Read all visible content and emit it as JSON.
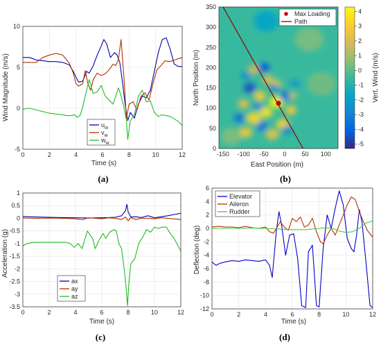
{
  "chart_data": [
    {
      "id": "a",
      "panel_label": "(a)",
      "type": "line",
      "xlabel": "Time (s)",
      "ylabel": "Wind Magnitude (m/s)",
      "xlim": [
        0,
        12
      ],
      "ylim": [
        -5,
        10
      ],
      "xticks": [
        0,
        2,
        4,
        6,
        8,
        10,
        12
      ],
      "yticks": [
        -5,
        0,
        5,
        10
      ],
      "grid": true,
      "legend_position": "bottom-right",
      "series": [
        {
          "name": "u",
          "sub": "w",
          "color": "#0000aa",
          "x": [
            0,
            0.5,
            1,
            1.5,
            2,
            2.5,
            3,
            3.5,
            3.8,
            4,
            4.2,
            4.5,
            4.8,
            5,
            5.3,
            5.6,
            5.9,
            6.1,
            6.3,
            6.6,
            6.9,
            7.1,
            7.3,
            7.5,
            7.7,
            7.9,
            8.1,
            8.4,
            8.7,
            9,
            9.3,
            9.6,
            9.9,
            10.2,
            10.5,
            10.8,
            11.1,
            11.4,
            11.7,
            12
          ],
          "y": [
            6.2,
            6.2,
            5.9,
            5.8,
            5.7,
            5.7,
            5.6,
            5.3,
            4.5,
            3.8,
            3.2,
            3.3,
            4.5,
            4.3,
            5.2,
            6.5,
            7.6,
            8.4,
            7.9,
            6.2,
            6.8,
            6.5,
            5.6,
            3.2,
            0.5,
            -1.5,
            -0.5,
            -1.2,
            0.5,
            1.5,
            1.3,
            2.2,
            4.5,
            6.8,
            8.4,
            8.6,
            7.2,
            5.4,
            5.1,
            5.1
          ]
        },
        {
          "name": "v",
          "sub": "w",
          "color": "#b03000",
          "x": [
            0,
            0.5,
            1,
            1.5,
            2,
            2.5,
            3,
            3.5,
            3.8,
            4,
            4.2,
            4.5,
            4.7,
            4.9,
            5.1,
            5.3,
            5.6,
            5.9,
            6.2,
            6.5,
            6.8,
            7,
            7.2,
            7.4,
            7.6,
            7.8,
            8,
            8.3,
            8.6,
            8.9,
            9.2,
            9.5,
            9.8,
            10.1,
            10.4,
            10.7,
            11,
            11.3,
            11.6,
            12
          ],
          "y": [
            5.6,
            5.6,
            5.6,
            6.2,
            6.5,
            6.7,
            6.5,
            5.5,
            4.3,
            3.0,
            2.7,
            3.0,
            4.6,
            3.0,
            2.2,
            3.5,
            4.3,
            4.0,
            4.2,
            4.7,
            5.4,
            5.2,
            6.0,
            8.4,
            4.0,
            -1.2,
            0.5,
            0.8,
            -0.2,
            1.5,
            1.9,
            1.0,
            3.0,
            4.7,
            5.2,
            5.8,
            5.7,
            5.8,
            6.0,
            6.2
          ]
        },
        {
          "name": "w",
          "sub": "w",
          "color": "#22bb22",
          "x": [
            0,
            0.5,
            1,
            1.5,
            2,
            2.5,
            3,
            3.3,
            3.6,
            3.9,
            4.1,
            4.3,
            4.5,
            4.7,
            5,
            5.3,
            5.6,
            5.9,
            6.2,
            6.5,
            6.8,
            7,
            7.2,
            7.4,
            7.6,
            7.8,
            7.9,
            8.1,
            8.4,
            8.7,
            9,
            9.3,
            9.6,
            9.9,
            10.2,
            10.5,
            10.8,
            11.1,
            11.4,
            11.7,
            12
          ],
          "y": [
            -0.1,
            0,
            -0.2,
            -0.4,
            -0.6,
            -0.7,
            -0.8,
            -0.9,
            -0.9,
            -0.8,
            -1.1,
            -0.9,
            0.1,
            1.5,
            3.5,
            1.8,
            2.0,
            2.8,
            1.5,
            1.0,
            0.5,
            1.5,
            2.5,
            1.5,
            0.2,
            -1.5,
            -3.8,
            -1.5,
            -0.8,
            1.5,
            2.2,
            0.8,
            0.9,
            -0.5,
            -1.0,
            -0.8,
            -0.9,
            -1.0,
            -1.3,
            -1.6,
            -2.1
          ]
        }
      ]
    },
    {
      "id": "b",
      "panel_label": "(b)",
      "type": "heatmap",
      "xlabel": "East Position (m)",
      "ylabel": "North Position (m)",
      "colorbar_label": "Vert. Wind (m/s)",
      "xlim": [
        -160,
        130
      ],
      "ylim": [
        0,
        350
      ],
      "xticks": [
        -150,
        -100,
        -50,
        0,
        50,
        100
      ],
      "yticks": [
        0,
        50,
        100,
        150,
        200,
        250,
        300,
        350
      ],
      "clim": [
        -5.3,
        4.3
      ],
      "colorbar_ticks": [
        -5,
        -4,
        -3,
        -2,
        -1,
        0,
        1,
        2,
        3,
        4
      ],
      "colormap": "parula",
      "legend_position": "top-right",
      "path": {
        "name": "Path",
        "color": "#8b0000",
        "x": [
          -150,
          45
        ],
        "y": [
          350,
          0
        ]
      },
      "max_loading": {
        "name": "Max Loading",
        "color": "#c00000",
        "x": -15,
        "y": 112
      },
      "features": [
        {
          "x": -20,
          "y": 115,
          "value": 4.0,
          "r": 18
        },
        {
          "x": -45,
          "y": 90,
          "value": 3.6,
          "r": 16
        },
        {
          "x": -75,
          "y": 75,
          "value": 3.4,
          "r": 18
        },
        {
          "x": -5,
          "y": 60,
          "value": 3.2,
          "r": 16
        },
        {
          "x": -60,
          "y": 130,
          "value": 3.0,
          "r": 15
        },
        {
          "x": 15,
          "y": 95,
          "value": 2.8,
          "r": 14
        },
        {
          "x": -95,
          "y": 40,
          "value": 2.8,
          "r": 16
        },
        {
          "x": -30,
          "y": 35,
          "value": 2.4,
          "r": 16
        },
        {
          "x": -100,
          "y": 110,
          "value": 2.2,
          "r": 14
        },
        {
          "x": -20,
          "y": 160,
          "value": 2.6,
          "r": 12
        },
        {
          "x": -40,
          "y": 170,
          "value": 2.0,
          "r": 14
        },
        {
          "x": -75,
          "y": 195,
          "value": 1.8,
          "r": 14
        },
        {
          "x": 20,
          "y": 130,
          "value": 2.2,
          "r": 10
        },
        {
          "x": -85,
          "y": 150,
          "value": -4.5,
          "r": 15
        },
        {
          "x": -50,
          "y": 200,
          "value": -4.2,
          "r": 14
        },
        {
          "x": 0,
          "y": 130,
          "value": -3.8,
          "r": 13
        },
        {
          "x": -110,
          "y": 75,
          "value": -3.6,
          "r": 14
        },
        {
          "x": -55,
          "y": 55,
          "value": -3.5,
          "r": 14
        },
        {
          "x": -25,
          "y": 150,
          "value": -3.2,
          "r": 10
        },
        {
          "x": 5,
          "y": 45,
          "value": -3.0,
          "r": 12
        },
        {
          "x": -95,
          "y": 180,
          "value": -2.6,
          "r": 12
        },
        {
          "x": 25,
          "y": 160,
          "value": -2.2,
          "r": 12
        },
        {
          "x": -65,
          "y": 105,
          "value": -2.8,
          "r": 12
        },
        {
          "x": -45,
          "y": 315,
          "value": -1.8,
          "r": 30
        },
        {
          "x": -110,
          "y": 250,
          "value": -0.6,
          "r": 30
        },
        {
          "x": 60,
          "y": 270,
          "value": 0.4,
          "r": 35
        },
        {
          "x": 90,
          "y": 160,
          "value": 0.3,
          "r": 35
        },
        {
          "x": -130,
          "y": 30,
          "value": 0.5,
          "r": 25
        }
      ]
    },
    {
      "id": "c",
      "panel_label": "(c)",
      "type": "line",
      "xlabel": "Time (s)",
      "ylabel": "Acceleration (g)",
      "xlim": [
        0,
        12
      ],
      "ylim": [
        -3.5,
        1
      ],
      "xticks": [
        0,
        2,
        4,
        6,
        8,
        10,
        12
      ],
      "yticks": [
        -3.5,
        -3,
        -2.5,
        -2,
        -1.5,
        -1,
        -0.5,
        0,
        0.5,
        1
      ],
      "grid": true,
      "legend_position": "bottom-left",
      "series": [
        {
          "name": "ax",
          "color": "#0000aa",
          "x": [
            0,
            1,
            2,
            3,
            4,
            5,
            6,
            6.5,
            7,
            7.5,
            7.8,
            7.9,
            8,
            8.2,
            8.6,
            9,
            9.5,
            10,
            10.5,
            11,
            11.5,
            12
          ],
          "y": [
            0.07,
            0.05,
            0.04,
            0.03,
            0.02,
            0.01,
            0.02,
            0.03,
            0.04,
            0.1,
            0.3,
            0.55,
            0.25,
            0.05,
            0.06,
            0.03,
            0.1,
            0.02,
            0.06,
            0.1,
            0.15,
            0.2
          ]
        },
        {
          "name": "ay",
          "color": "#b03000",
          "x": [
            0,
            1,
            2,
            3,
            4,
            4.5,
            5,
            5.5,
            6,
            6.5,
            7,
            7.5,
            7.8,
            8,
            8.2,
            8.6,
            9,
            9.5,
            10,
            10.5,
            11,
            11.5,
            12
          ],
          "y": [
            0.01,
            0.0,
            0.01,
            0.0,
            -0.02,
            -0.06,
            0.02,
            0.0,
            -0.02,
            0.02,
            0.0,
            -0.05,
            0.05,
            -0.1,
            0.03,
            -0.05,
            0.0,
            0.0,
            -0.02,
            0.02,
            0.0,
            -0.03,
            -0.05
          ]
        },
        {
          "name": "az",
          "color": "#22bb22",
          "x": [
            0,
            0.3,
            0.8,
            1.5,
            2,
            2.5,
            3,
            3.3,
            3.6,
            3.9,
            4.2,
            4.5,
            4.7,
            4.9,
            5.1,
            5.3,
            5.5,
            5.8,
            6.1,
            6.3,
            6.6,
            6.9,
            7.1,
            7.3,
            7.5,
            7.7,
            7.85,
            7.95,
            8.05,
            8.2,
            8.5,
            8.8,
            9.1,
            9.4,
            9.7,
            10,
            10.3,
            10.6,
            10.9,
            11.2,
            11.5,
            11.8,
            12
          ],
          "y": [
            -1.1,
            -1.0,
            -0.95,
            -0.95,
            -0.95,
            -0.95,
            -0.95,
            -0.95,
            -1.0,
            -1.15,
            -1.0,
            -1.2,
            -0.85,
            -0.5,
            -0.65,
            -0.8,
            -1.2,
            -0.85,
            -0.6,
            -0.8,
            -0.55,
            -0.45,
            -0.5,
            -1.0,
            -1.2,
            -2.0,
            -2.8,
            -3.45,
            -2.6,
            -1.8,
            -1.6,
            -1.0,
            -0.75,
            -0.45,
            -0.55,
            -0.35,
            -0.4,
            -0.35,
            -0.35,
            -0.6,
            -0.8,
            -1.1,
            -1.3
          ]
        }
      ]
    },
    {
      "id": "d",
      "panel_label": "(d)",
      "type": "line",
      "xlabel": "Time (s)",
      "ylabel": "Deflection (deg)",
      "xlim": [
        0,
        12
      ],
      "ylim": [
        -12,
        6
      ],
      "xticks": [
        0,
        2,
        4,
        6,
        8,
        10,
        12
      ],
      "yticks": [
        -12,
        -10,
        -8,
        -6,
        -4,
        -2,
        0,
        2,
        4,
        6
      ],
      "grid": true,
      "legend_position": "top-left",
      "series": [
        {
          "name": "Elevator",
          "color": "#0000cc",
          "x": [
            0,
            0.3,
            0.6,
            1,
            1.5,
            2,
            2.5,
            3,
            3.5,
            4,
            4.3,
            4.5,
            4.8,
            5,
            5.2,
            5.5,
            5.8,
            6.1,
            6.4,
            6.7,
            7,
            7.2,
            7.5,
            7.8,
            8,
            8.3,
            8.6,
            8.9,
            9.2,
            9.5,
            9.8,
            10.1,
            10.4,
            10.6,
            10.8,
            11,
            11.2,
            11.5,
            11.8,
            12
          ],
          "y": [
            -5.0,
            -5.5,
            -5.2,
            -5.0,
            -4.8,
            -4.9,
            -4.7,
            -4.8,
            -4.9,
            -4.7,
            -5.5,
            -7.3,
            -0.5,
            2.5,
            0.5,
            -4.0,
            -1.0,
            -0.8,
            -4.5,
            -11.5,
            -11.8,
            -3.5,
            -2.5,
            -11.5,
            -11.7,
            -3.0,
            2.0,
            0.0,
            3.0,
            5.6,
            3.5,
            -1.5,
            -3.0,
            -3.5,
            -1.0,
            2.8,
            1.0,
            -5.0,
            -11.5,
            -11.8
          ]
        },
        {
          "name": "Aileron",
          "color": "#b03000",
          "x": [
            0,
            0.5,
            1,
            1.5,
            2,
            2.5,
            3,
            3.5,
            4,
            4.3,
            4.6,
            4.9,
            5.1,
            5.4,
            5.7,
            6,
            6.3,
            6.6,
            6.9,
            7.2,
            7.5,
            7.8,
            8.1,
            8.3,
            8.6,
            8.9,
            9.2,
            9.5,
            9.8,
            10.1,
            10.4,
            10.7,
            11,
            11.3,
            11.6,
            12
          ],
          "y": [
            0.2,
            0.3,
            0.2,
            0.2,
            0.1,
            0.3,
            0.1,
            0.0,
            0.2,
            -0.5,
            -0.7,
            0.3,
            1.0,
            0.2,
            -0.3,
            1.5,
            1.0,
            1.7,
            0.2,
            0.5,
            1.5,
            -0.5,
            -2.0,
            -2.3,
            -1.0,
            0.0,
            -1.0,
            0.5,
            2.0,
            3.5,
            4.7,
            4.3,
            2.5,
            1.0,
            -0.3,
            -1.3
          ]
        },
        {
          "name": "Rudder",
          "color": "#44cc44",
          "x": [
            0,
            1,
            2,
            3,
            4,
            5,
            6,
            7,
            7.5,
            8,
            8.5,
            9,
            9.5,
            10,
            10.5,
            11,
            11.5,
            12
          ],
          "y": [
            0.0,
            0.0,
            0.0,
            0.05,
            0.0,
            -0.1,
            -0.2,
            -0.2,
            -0.1,
            0.0,
            0.1,
            0.0,
            -0.4,
            -0.6,
            -0.5,
            0.0,
            0.8,
            1.1
          ]
        }
      ]
    }
  ]
}
